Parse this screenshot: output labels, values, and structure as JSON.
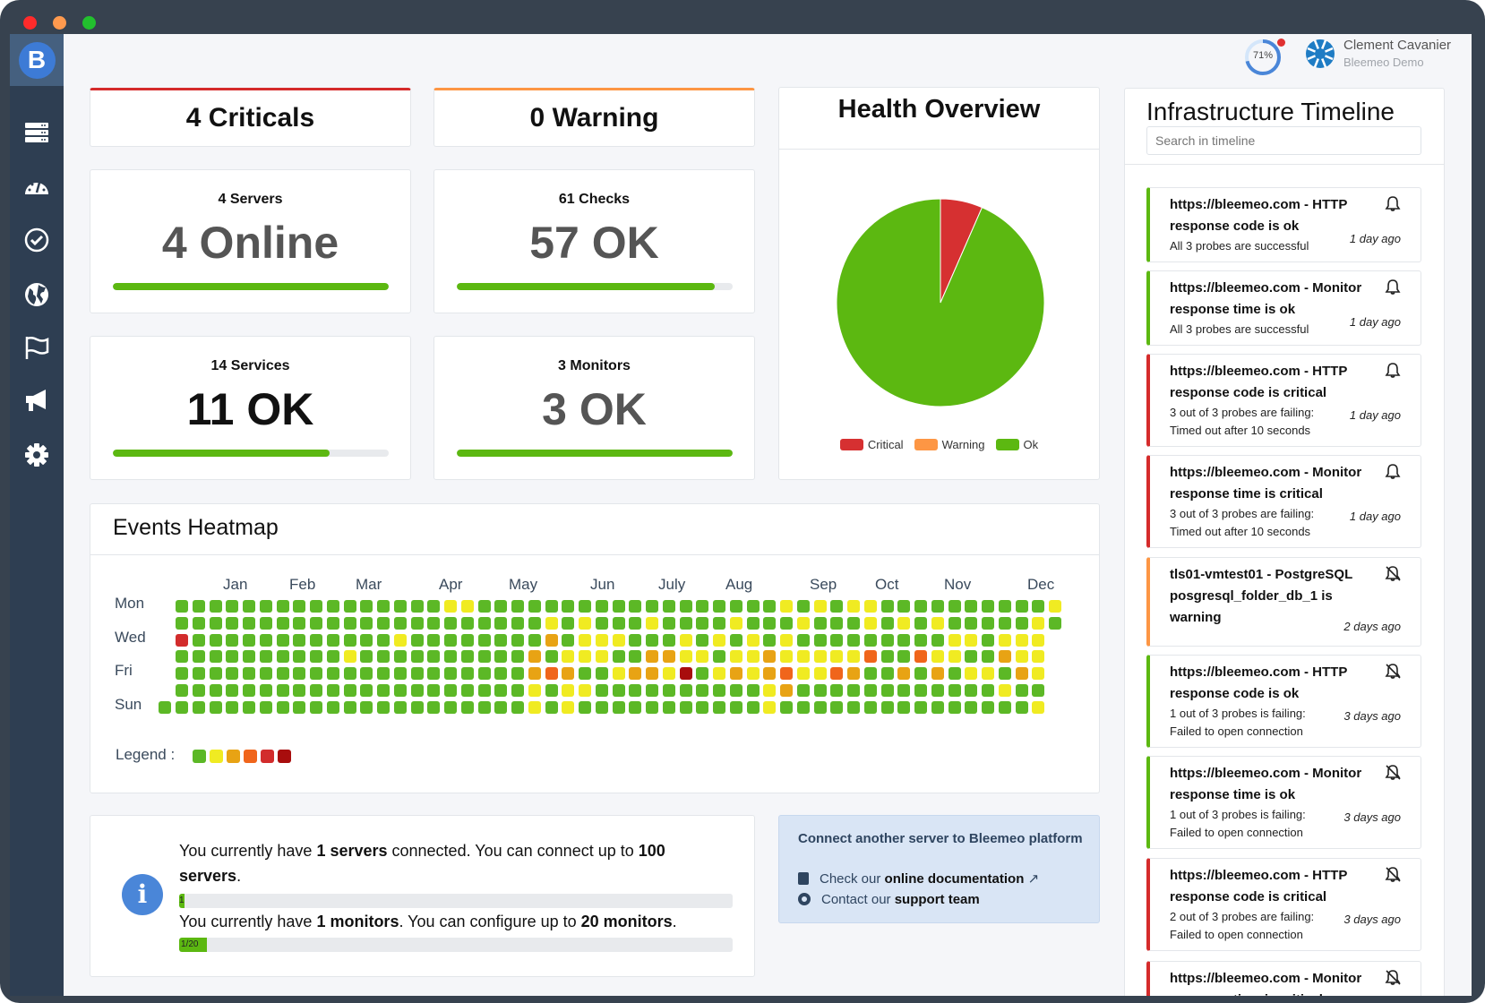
{
  "window": {
    "controls": [
      "close",
      "minimize",
      "maximize"
    ]
  },
  "sidebar": {
    "logo": "B",
    "items": [
      {
        "icon": "server-icon",
        "name": "servers"
      },
      {
        "icon": "dashboard-icon",
        "name": "dashboards"
      },
      {
        "icon": "check-icon",
        "name": "checks"
      },
      {
        "icon": "globe-icon",
        "name": "monitors"
      },
      {
        "icon": "flag-icon",
        "name": "flags"
      },
      {
        "icon": "megaphone-icon",
        "name": "notifications"
      },
      {
        "icon": "gear-icon",
        "name": "settings"
      }
    ]
  },
  "header": {
    "gauge": "71%",
    "gauge_value": 71,
    "user_name": "Clement Cavanier",
    "account": "Bleemeo Demo"
  },
  "status": {
    "criticals": "4 Criticals",
    "warnings": "0 Warning"
  },
  "stats": [
    {
      "title": "4 Servers",
      "value": "4 Online",
      "fill": 1.0,
      "dark": false
    },
    {
      "title": "61 Checks",
      "value": "57 OK",
      "fill": 0.934,
      "dark": false
    },
    {
      "title": "14 Services",
      "value": "11 OK",
      "fill": 0.786,
      "dark": true
    },
    {
      "title": "3 Monitors",
      "value": "3 OK",
      "fill": 1.0,
      "dark": false
    }
  ],
  "health": {
    "title": "Health Overview",
    "legend": [
      "Critical",
      "Warning",
      "Ok"
    ]
  },
  "chart_data": {
    "type": "pie",
    "title": "Health Overview",
    "labels": [
      "Critical",
      "Warning",
      "Ok"
    ],
    "values": [
      4,
      0,
      57
    ],
    "colors": [
      "#d63031",
      "#fd9644",
      "#5cb811"
    ],
    "legend": "bottom"
  },
  "heatmap": {
    "title": "Events Heatmap",
    "months": [
      "Jan",
      "Feb",
      "Mar",
      "Apr",
      "May",
      "Jun",
      "July",
      "Aug",
      "Sep",
      "Oct",
      "Nov",
      "Dec"
    ],
    "days": [
      "Mon",
      "Wed",
      "Fri",
      "Sun"
    ],
    "legend_label": "Legend :",
    "colors": [
      "#5cb826",
      "#f0eb22",
      "#e8a314",
      "#f0651b",
      "#d22c2c",
      "#a80d0d"
    ],
    "rows": [
      "00000000000000001100000000000000000010101100000000001",
      "00000000000000000000001010001000010001000101010000010",
      "4000000000000100000000201110001010101000000000110111",
      "0000000000100000000002011100221101121111130031100211",
      "0000000000000000000002320012215012123113200202011021",
      "0000000000000000000001011000000000012000000000000100",
      "00000000000000000000001010000000000010000000000000001"
    ]
  },
  "usage": {
    "servers_line": [
      "You currently have ",
      "1 servers",
      " connected.  You can connect up to ",
      "100 servers",
      "."
    ],
    "servers_bar_label": "1",
    "servers_fill": 0.01,
    "monitors_line": [
      "You currently have ",
      "1 monitors",
      ".  You can configure up to ",
      "20 monitors",
      "."
    ],
    "monitors_bar_label": "1/20",
    "monitors_fill": 0.05
  },
  "connect": {
    "title": "Connect another server to Bleemeo platform",
    "doc_prefix": "Check our ",
    "doc_link": "online documentation",
    "support_prefix": "Contact our ",
    "support_link": "support team"
  },
  "timeline": {
    "title": "Infrastructure Timeline",
    "search_placeholder": "Search in timeline",
    "items": [
      {
        "title": "https://bleemeo.com - HTTP response code is ok",
        "desc": "All 3 probes are successful",
        "detail": "",
        "time": "1 day ago",
        "status": "ok",
        "muted": false
      },
      {
        "title": "https://bleemeo.com - Monitor response time is ok",
        "desc": "All 3 probes are successful",
        "detail": "",
        "time": "1 day ago",
        "status": "ok",
        "muted": false
      },
      {
        "title": "https://bleemeo.com - HTTP response code is critical",
        "desc": "3 out of 3 probes are failing:",
        "detail": "Timed out after 10 seconds",
        "time": "1 day ago",
        "status": "critical",
        "muted": false
      },
      {
        "title": "https://bleemeo.com - Monitor response time is critical",
        "desc": "3 out of 3 probes are failing:",
        "detail": "Timed out after 10 seconds",
        "time": "1 day ago",
        "status": "critical",
        "muted": false
      },
      {
        "title": "tls01-vmtest01 - PostgreSQL posgresql_folder_db_1 is warning",
        "desc": "",
        "detail": "",
        "time": "2 days ago",
        "status": "warning",
        "muted": true
      },
      {
        "title": "https://bleemeo.com - HTTP response code is ok",
        "desc": "1 out of 3 probes is failing:",
        "detail": "Failed to open connection",
        "time": "3 days ago",
        "status": "ok",
        "muted": true
      },
      {
        "title": "https://bleemeo.com - Monitor response time is ok",
        "desc": "1 out of 3 probes is failing:",
        "detail": "Failed to open connection",
        "time": "3 days ago",
        "status": "ok",
        "muted": true
      },
      {
        "title": "https://bleemeo.com - HTTP response code is critical",
        "desc": "2 out of 3 probes are failing:",
        "detail": "Failed to open connection",
        "time": "3 days ago",
        "status": "critical",
        "muted": true
      },
      {
        "title": "https://bleemeo.com - Monitor response time is critical",
        "desc": "",
        "detail": "",
        "time": "",
        "status": "critical",
        "muted": true
      }
    ]
  }
}
